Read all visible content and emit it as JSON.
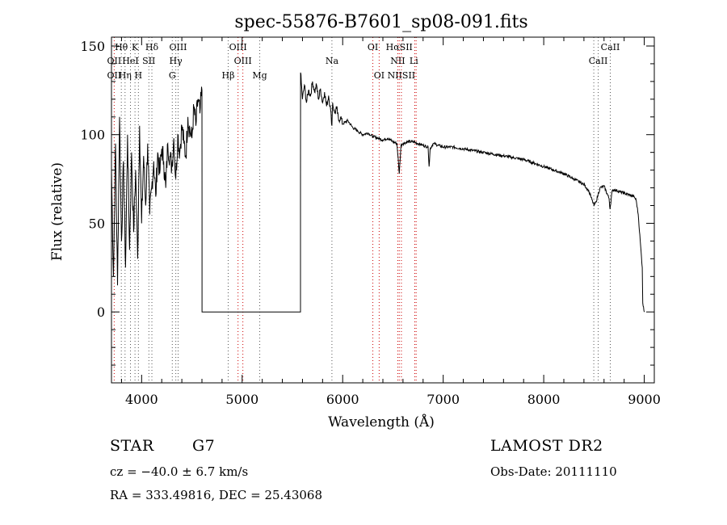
{
  "chart_data": {
    "type": "line",
    "title": "spec-55876-B7601_sp08-091.fits",
    "xlabel": "Wavelength (Å)",
    "ylabel": "Flux (relative)",
    "xlim": [
      3700,
      9100
    ],
    "ylim": [
      -40,
      155
    ],
    "xticks": [
      4000,
      5000,
      6000,
      7000,
      8000,
      9000
    ],
    "yticks": [
      0,
      50,
      100,
      150
    ],
    "grid": false,
    "series": [
      {
        "x": [
          3700,
          3720,
          3740,
          3760,
          3780,
          3800,
          3820,
          3840,
          3860,
          3880,
          3900,
          3920,
          3940,
          3960,
          3980,
          4000,
          4020,
          4040,
          4060,
          4080,
          4100,
          4120,
          4140,
          4160,
          4180,
          4200,
          4220,
          4240,
          4260,
          4280,
          4300,
          4320,
          4340,
          4360,
          4380,
          4400,
          4420,
          4440,
          4460,
          4480,
          4500,
          4520,
          4540,
          4560,
          4580,
          4600,
          4601,
          5580,
          5581,
          5600,
          5620,
          5640,
          5660,
          5680,
          5700,
          5720,
          5740,
          5760,
          5780,
          5800,
          5820,
          5840,
          5860,
          5880,
          5893,
          5900,
          5920,
          5940,
          5960,
          5980,
          6000,
          6050,
          6100,
          6150,
          6200,
          6250,
          6300,
          6350,
          6400,
          6450,
          6500,
          6540,
          6563,
          6580,
          6600,
          6650,
          6700,
          6750,
          6800,
          6850,
          6860,
          6870,
          6900,
          6950,
          7000,
          7100,
          7200,
          7300,
          7400,
          7500,
          7600,
          7700,
          7800,
          7900,
          8000,
          8100,
          8200,
          8300,
          8400,
          8450,
          8500,
          8520,
          8540,
          8560,
          8600,
          8650,
          8660,
          8680,
          8700,
          8750,
          8800,
          8850,
          8900,
          8920,
          8940,
          8960,
          8980,
          8985,
          9000
        ],
        "y": [
          80,
          20,
          95,
          15,
          110,
          40,
          85,
          25,
          100,
          35,
          90,
          45,
          80,
          30,
          105,
          50,
          88,
          60,
          95,
          55,
          70,
          85,
          65,
          90,
          78,
          92,
          85,
          70,
          95,
          88,
          82,
          98,
          75,
          100,
          90,
          105,
          95,
          88,
          110,
          102,
          98,
          115,
          105,
          120,
          112,
          125,
          0,
          0,
          135,
          120,
          128,
          118,
          125,
          122,
          130,
          124,
          128,
          120,
          126,
          118,
          124,
          116,
          122,
          114,
          105,
          118,
          112,
          115,
          108,
          110,
          106,
          108,
          104,
          102,
          100,
          101,
          99,
          98,
          97,
          98,
          96,
          95,
          78,
          94,
          95,
          96,
          96,
          95,
          94,
          93,
          82,
          92,
          95,
          94,
          93,
          93,
          92,
          91,
          90,
          89,
          88,
          87,
          86,
          84,
          82,
          80,
          78,
          75,
          72,
          68,
          60,
          62,
          66,
          70,
          71,
          64,
          58,
          68,
          69,
          68,
          67,
          66,
          65,
          63,
          55,
          40,
          25,
          5,
          0
        ]
      }
    ],
    "spectral_lines": [
      {
        "label": "Hθ",
        "wavelength": 3798,
        "row": 0,
        "color": "#000000"
      },
      {
        "label": "K",
        "wavelength": 3934,
        "row": 0,
        "color": "#000000"
      },
      {
        "label": "Hδ",
        "wavelength": 4102,
        "row": 0,
        "color": "#000000"
      },
      {
        "label": "OIII",
        "wavelength": 4363,
        "row": 0,
        "color": "#000000"
      },
      {
        "label": "OIII",
        "wavelength": 4959,
        "row": 0,
        "color": "#cc0000"
      },
      {
        "label": "OI",
        "wavelength": 6300,
        "row": 0,
        "color": "#cc0000"
      },
      {
        "label": "HαSII",
        "wavelength": 6563,
        "row": 0,
        "color": "#cc0000"
      },
      {
        "label": "CaII",
        "wavelength": 8662,
        "row": 0,
        "color": "#000000"
      },
      {
        "label": "OII",
        "wavelength": 3727,
        "row": 1,
        "color": "#cc0000"
      },
      {
        "label": "HeI",
        "wavelength": 3889,
        "row": 1,
        "color": "#000000"
      },
      {
        "label": "SII",
        "wavelength": 4072,
        "row": 1,
        "color": "#000000"
      },
      {
        "label": "Hγ",
        "wavelength": 4340,
        "row": 1,
        "color": "#000000"
      },
      {
        "label": "OIII",
        "wavelength": 5007,
        "row": 1,
        "color": "#cc0000"
      },
      {
        "label": "Na",
        "wavelength": 5893,
        "row": 1,
        "color": "#000000"
      },
      {
        "label": "NII",
        "wavelength": 6548,
        "row": 1,
        "color": "#cc0000"
      },
      {
        "label": "Li",
        "wavelength": 6708,
        "row": 1,
        "color": "#000000"
      },
      {
        "label": "CaII",
        "wavelength": 8542,
        "row": 1,
        "color": "#000000"
      },
      {
        "label": "OII",
        "wavelength": 3727,
        "row": 2,
        "color": "#cc0000"
      },
      {
        "label": "Hη",
        "wavelength": 3835,
        "row": 2,
        "color": "#000000"
      },
      {
        "label": "H",
        "wavelength": 3968,
        "row": 2,
        "color": "#000000"
      },
      {
        "label": "G",
        "wavelength": 4305,
        "row": 2,
        "color": "#000000"
      },
      {
        "label": "Hβ",
        "wavelength": 4861,
        "row": 2,
        "color": "#000000"
      },
      {
        "label": "Mg",
        "wavelength": 5175,
        "row": 2,
        "color": "#000000"
      },
      {
        "label": "OI",
        "wavelength": 6363,
        "row": 2,
        "color": "#cc0000"
      },
      {
        "label": "NIISII",
        "wavelength": 6584,
        "row": 2,
        "color": "#cc0000"
      }
    ],
    "dotted_lines": [
      3727,
      3798,
      3835,
      3889,
      3934,
      3968,
      4072,
      4102,
      4305,
      4340,
      4363,
      4861,
      4959,
      5007,
      5175,
      5893,
      6300,
      6363,
      6548,
      6563,
      6584,
      6717,
      6731,
      8498,
      8542,
      8662
    ]
  },
  "info": {
    "object_type": "STAR",
    "subclass": "G7",
    "survey": "LAMOST DR2",
    "redshift": "cz = −40.0 ± 6.7 km/s",
    "obs_date": "Obs-Date: 20111110",
    "coords": "RA = 333.49816, DEC =  25.43068"
  },
  "colors": {
    "line": "#000000",
    "marker_red": "#cc0000",
    "marker_black": "#000000"
  }
}
